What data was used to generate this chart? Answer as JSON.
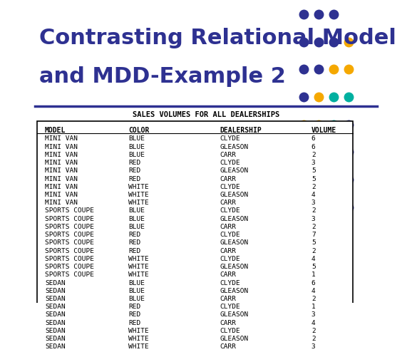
{
  "title_line1": "Contrasting Relational Model",
  "title_line2": "and MDD-Example 2",
  "title_color": "#2e3191",
  "subtitle": "SALES VOLUMES FOR ALL DEALERSHIPS",
  "bg_color": "#ffffff",
  "columns": [
    "MODEL",
    "COLOR",
    "DEALERSHIP",
    "VOLUME"
  ],
  "rows": [
    [
      "MINI VAN",
      "BLUE",
      "CLYDE",
      "6"
    ],
    [
      "MINI VAN",
      "BLUE",
      "GLEASON",
      "6"
    ],
    [
      "MINI VAN",
      "BLUE",
      "CARR",
      "2"
    ],
    [
      "MINI VAN",
      "RED",
      "CLYDE",
      "3"
    ],
    [
      "MINI VAN",
      "RED",
      "GLEASON",
      "5"
    ],
    [
      "MINI VAN",
      "RED",
      "CARR",
      "5"
    ],
    [
      "MINI VAN",
      "WHITE",
      "CLYDE",
      "2"
    ],
    [
      "MINI VAN",
      "WHITE",
      "GLEASON",
      "4"
    ],
    [
      "MINI VAN",
      "WHITE",
      "CARR",
      "3"
    ],
    [
      "SPORTS COUPE",
      "BLUE",
      "CLYDE",
      "2"
    ],
    [
      "SPORTS COUPE",
      "BLUE",
      "GLEASON",
      "3"
    ],
    [
      "SPORTS COUPE",
      "BLUE",
      "CARR",
      "2"
    ],
    [
      "SPORTS COUPE",
      "RED",
      "CLYDE",
      "7"
    ],
    [
      "SPORTS COUPE",
      "RED",
      "GLEASON",
      "5"
    ],
    [
      "SPORTS COUPE",
      "RED",
      "CARR",
      "2"
    ],
    [
      "SPORTS COUPE",
      "WHITE",
      "CLYDE",
      "4"
    ],
    [
      "SPORTS COUPE",
      "WHITE",
      "GLEASON",
      "5"
    ],
    [
      "SPORTS COUPE",
      "WHITE",
      "CARR",
      "1"
    ],
    [
      "SEDAN",
      "BLUE",
      "CLYDE",
      "6"
    ],
    [
      "SEDAN",
      "BLUE",
      "GLEASON",
      "4"
    ],
    [
      "SEDAN",
      "BLUE",
      "CARR",
      "2"
    ],
    [
      "SEDAN",
      "RED",
      "CLYDE",
      "1"
    ],
    [
      "SEDAN",
      "RED",
      "GLEASON",
      "3"
    ],
    [
      "SEDAN",
      "RED",
      "CARR",
      "4"
    ],
    [
      "SEDAN",
      "WHITE",
      "CLYDE",
      "2"
    ],
    [
      "SEDAN",
      "WHITE",
      "GLEASON",
      "2"
    ],
    [
      "SEDAN",
      "WHITE",
      "CARR",
      "3"
    ]
  ],
  "dot_navy": "#2e3191",
  "dot_yellow": "#f5a800",
  "dot_teal": "#00b0a0",
  "separator_color": "#2e3191"
}
